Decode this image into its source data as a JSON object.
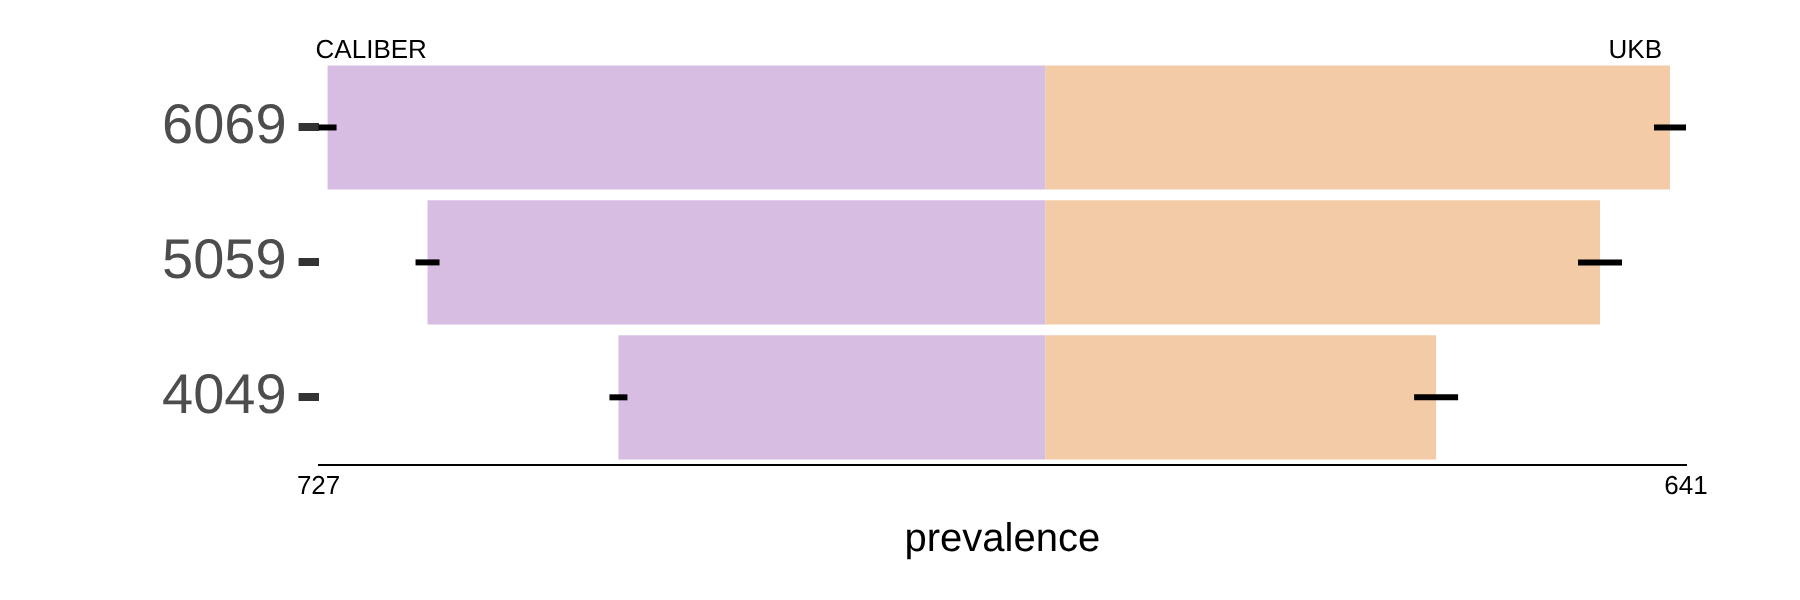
{
  "chart_data": {
    "type": "bar",
    "orientation": "horizontal",
    "stacked": true,
    "xlabel": "prevalence",
    "categories": [
      "6069",
      "5059",
      "4049"
    ],
    "series": [
      {
        "name": "CALIBER",
        "color": "#d8bde3",
        "values": [
          -718,
          -618,
          -427
        ],
        "errors": [
          9,
          12,
          9
        ]
      },
      {
        "name": "UKB",
        "color": "#f4cba7",
        "values": [
          625,
          555,
          391
        ],
        "errors": [
          16,
          22,
          22
        ]
      }
    ],
    "xlim": [
      -727,
      641
    ],
    "xticks": [
      {
        "value": -727,
        "label": "727"
      },
      {
        "value": 641,
        "label": "641"
      }
    ],
    "grid": false,
    "legend": false
  }
}
